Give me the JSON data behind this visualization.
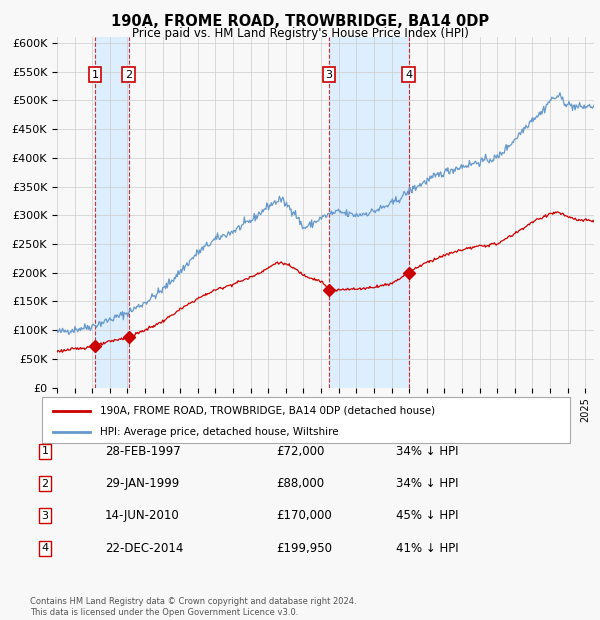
{
  "title": "190A, FROME ROAD, TROWBRIDGE, BA14 0DP",
  "subtitle": "Price paid vs. HM Land Registry's House Price Index (HPI)",
  "footer": "Contains HM Land Registry data © Crown copyright and database right 2024.\nThis data is licensed under the Open Government Licence v3.0.",
  "legend_red": "190A, FROME ROAD, TROWBRIDGE, BA14 0DP (detached house)",
  "legend_blue": "HPI: Average price, detached house, Wiltshire",
  "transactions": [
    {
      "id": 1,
      "date": "28-FEB-1997",
      "date_num": 1997.16,
      "price": 72000,
      "pct": "34%"
    },
    {
      "id": 2,
      "date": "29-JAN-1999",
      "date_num": 1999.08,
      "price": 88000,
      "pct": "34%"
    },
    {
      "id": 3,
      "date": "14-JUN-2010",
      "date_num": 2010.45,
      "price": 170000,
      "pct": "45%"
    },
    {
      "id": 4,
      "date": "22-DEC-2014",
      "date_num": 2014.97,
      "price": 199950,
      "pct": "41%"
    }
  ],
  "ylim": [
    0,
    610000
  ],
  "xlim": [
    1995.0,
    2025.5
  ],
  "yticks": [
    0,
    50000,
    100000,
    150000,
    200000,
    250000,
    300000,
    350000,
    400000,
    450000,
    500000,
    550000,
    600000
  ],
  "ytick_labels": [
    "£0",
    "£50K",
    "£100K",
    "£150K",
    "£200K",
    "£250K",
    "£300K",
    "£350K",
    "£400K",
    "£450K",
    "£500K",
    "£550K",
    "£600K"
  ],
  "red_color": "#cc0000",
  "blue_color": "#6699cc",
  "shade_color": "#ddeeff",
  "vline_color": "#cc0000",
  "grid_color": "#cccccc",
  "background_color": "#f8f8f8"
}
